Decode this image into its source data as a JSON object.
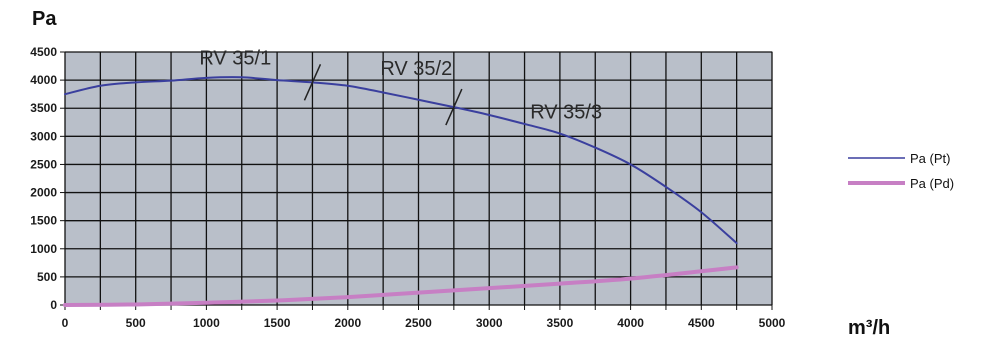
{
  "chart_data": {
    "type": "line",
    "title": "",
    "ylabel": "Pa",
    "xlabel": "m³/h",
    "xlim": [
      0,
      5000
    ],
    "ylim": [
      0,
      4500
    ],
    "grid": true,
    "legend_position": "right",
    "x_ticks": [
      "0",
      "500",
      "1000",
      "1500",
      "2000",
      "2500",
      "3000",
      "3500",
      "4000",
      "4500",
      "5000"
    ],
    "y_ticks": [
      "0",
      "500",
      "1000",
      "1500",
      "2000",
      "2500",
      "3000",
      "3500",
      "4000",
      "4500"
    ],
    "series": [
      {
        "name": "Pa (Pt)",
        "color": "#3a3f9e",
        "x": [
          0,
          250,
          500,
          750,
          1000,
          1250,
          1500,
          1750,
          2000,
          2250,
          2500,
          2750,
          3000,
          3250,
          3500,
          3750,
          4000,
          4250,
          4500,
          4750
        ],
        "y": [
          3750,
          3900,
          3960,
          3990,
          4040,
          4050,
          4000,
          3960,
          3900,
          3780,
          3650,
          3520,
          3380,
          3220,
          3050,
          2800,
          2500,
          2100,
          1650,
          1100
        ]
      },
      {
        "name": "Pa (Pd)",
        "color": "#c77fc4",
        "x": [
          0,
          500,
          1000,
          1500,
          2000,
          2500,
          3000,
          3500,
          4000,
          4500,
          4750
        ],
        "y": [
          0,
          10,
          40,
          80,
          140,
          220,
          300,
          380,
          470,
          600,
          670
        ]
      }
    ],
    "annotations": [
      {
        "text": "RV 35/1",
        "x": 950,
        "y": 4280
      },
      {
        "text": "RV 35/2",
        "x": 2230,
        "y": 4090
      },
      {
        "text": "RV 35/3",
        "x": 3290,
        "y": 3320
      }
    ],
    "dividers": [
      {
        "x": 1750,
        "y": 3960
      },
      {
        "x": 2750,
        "y": 3520
      }
    ]
  }
}
